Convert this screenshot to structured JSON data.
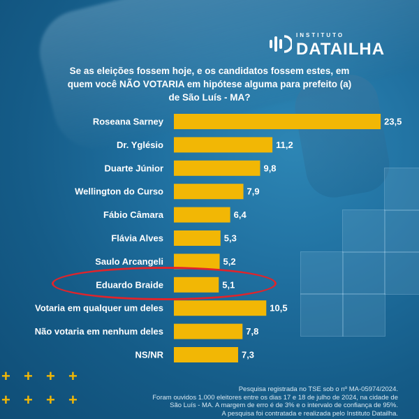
{
  "brand": {
    "small": "INSTITUTO",
    "name": "DATAILHA",
    "accent": "#f2b705"
  },
  "question_lines": [
    "Se as eleições fossem hoje, e os candidatos fossem estes, em",
    "quem você NÃO VOTARIA em hipótese alguma para prefeito (a)",
    "de São Luís - MA?"
  ],
  "chart_data": {
    "type": "bar",
    "orientation": "horizontal",
    "categories": [
      "Roseana Sarney",
      "Dr. Yglésio",
      "Duarte Júnior",
      "Wellington do Curso",
      "Fábio Câmara",
      "Flávia Alves",
      "Saulo Arcangeli",
      "Eduardo Braide",
      "Votaria em qualquer um deles",
      "Não votaria em nenhum deles",
      "NS/NR"
    ],
    "values": [
      23.5,
      11.2,
      9.8,
      7.9,
      6.4,
      5.3,
      5.2,
      5.1,
      10.5,
      7.8,
      7.3
    ],
    "value_labels": [
      "23,5",
      "11,2",
      "9,8",
      "7,9",
      "6,4",
      "5,3",
      "5,2",
      "5,1",
      "10,5",
      "7,8",
      "7,3"
    ],
    "bar_color": "#f2b705",
    "highlighted_category": "Eduardo Braide",
    "highlight_color": "#e0242b"
  },
  "footnote_lines": [
    "Pesquisa registrada no TSE sob o nº MA-05974/2024.",
    "Foram ouvidos 1.000 eleitores entre os dias 17 e 18 de julho de 2024, na cidade de",
    "São Luís - MA. A margem de erro é de 3% e o intervalo de confiança de 95%.",
    "A pesquisa foi contratada e realizada pelo Instituto Datailha."
  ]
}
